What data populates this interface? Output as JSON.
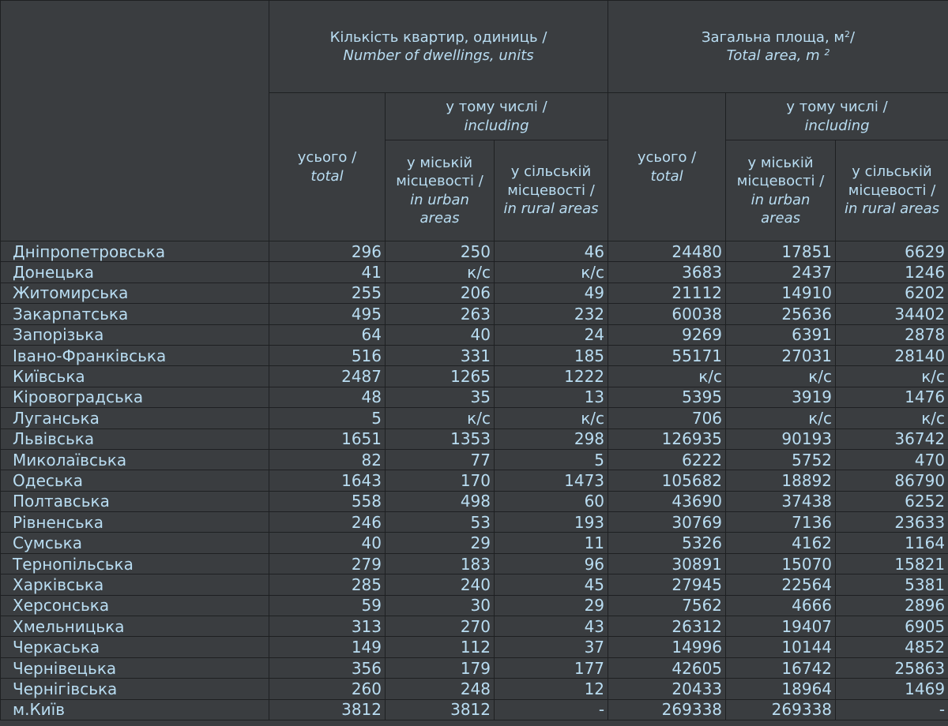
{
  "header": {
    "dwellings": {
      "ua": "Кількість квартир, одиниць /",
      "en": "Number of dwellings, units"
    },
    "area": {
      "ua": "Загальна площа, м",
      "ua_sup": "2",
      "ua_tail": "/",
      "en": "Total area, m",
      "en_sup": "2"
    },
    "total": {
      "ua": "усього /",
      "en": "total"
    },
    "including": {
      "ua": "у тому числі /",
      "en": "including"
    },
    "urban": {
      "ua_line1": "у міській",
      "ua_line2": "місцевості /",
      "en_line1": "in urban",
      "en_line2": "areas"
    },
    "rural": {
      "ua_line1": "у сільській",
      "ua_line2": "місцевості /",
      "en": "in rural areas"
    }
  },
  "rows": [
    {
      "region": "Дніпропетровська",
      "values": [
        "296",
        "250",
        "46",
        "24480",
        "17851",
        "6629"
      ]
    },
    {
      "region": "Донецька",
      "values": [
        "41",
        "к/с",
        "к/с",
        "3683",
        "2437",
        "1246"
      ]
    },
    {
      "region": "Житомирська",
      "values": [
        "255",
        "206",
        "49",
        "21112",
        "14910",
        "6202"
      ]
    },
    {
      "region": "Закарпатська",
      "values": [
        "495",
        "263",
        "232",
        "60038",
        "25636",
        "34402"
      ]
    },
    {
      "region": "Запорізька",
      "values": [
        "64",
        "40",
        "24",
        "9269",
        "6391",
        "2878"
      ]
    },
    {
      "region": "Івано-Франківська",
      "values": [
        "516",
        "331",
        "185",
        "55171",
        "27031",
        "28140"
      ]
    },
    {
      "region": "Київська",
      "values": [
        "2487",
        "1265",
        "1222",
        "к/с",
        "к/с",
        "к/с"
      ]
    },
    {
      "region": "Кіровоградська",
      "values": [
        "48",
        "35",
        "13",
        "5395",
        "3919",
        "1476"
      ]
    },
    {
      "region": "Луганська",
      "values": [
        "5",
        "к/с",
        "к/с",
        "706",
        "к/с",
        "к/с"
      ]
    },
    {
      "region": "Львівська",
      "values": [
        "1651",
        "1353",
        "298",
        "126935",
        "90193",
        "36742"
      ]
    },
    {
      "region": "Миколаївська",
      "values": [
        "82",
        "77",
        "5",
        "6222",
        "5752",
        "470"
      ]
    },
    {
      "region": "Одеська",
      "values": [
        "1643",
        "170",
        "1473",
        "105682",
        "18892",
        "86790"
      ]
    },
    {
      "region": "Полтавська",
      "values": [
        "558",
        "498",
        "60",
        "43690",
        "37438",
        "6252"
      ]
    },
    {
      "region": "Рівненська",
      "values": [
        "246",
        "53",
        "193",
        "30769",
        "7136",
        "23633"
      ]
    },
    {
      "region": "Сумська",
      "values": [
        "40",
        "29",
        "11",
        "5326",
        "4162",
        "1164"
      ]
    },
    {
      "region": "Тернопільська",
      "values": [
        "279",
        "183",
        "96",
        "30891",
        "15070",
        "15821"
      ]
    },
    {
      "region": "Харківська",
      "values": [
        "285",
        "240",
        "45",
        "27945",
        "22564",
        "5381"
      ]
    },
    {
      "region": "Херсонська",
      "values": [
        "59",
        "30",
        "29",
        "7562",
        "4666",
        "2896"
      ]
    },
    {
      "region": "Хмельницька",
      "values": [
        "313",
        "270",
        "43",
        "26312",
        "19407",
        "6905"
      ]
    },
    {
      "region": "Черкаська",
      "values": [
        "149",
        "112",
        "37",
        "14996",
        "10144",
        "4852"
      ]
    },
    {
      "region": "Чернівецька",
      "values": [
        "356",
        "179",
        "177",
        "42605",
        "16742",
        "25863"
      ]
    },
    {
      "region": "Чернігівська",
      "values": [
        "260",
        "248",
        "12",
        "20433",
        "18964",
        "1469"
      ]
    },
    {
      "region": "м.Київ",
      "values": [
        "3812",
        "3812",
        "-",
        "269338",
        "269338",
        "-"
      ]
    }
  ]
}
